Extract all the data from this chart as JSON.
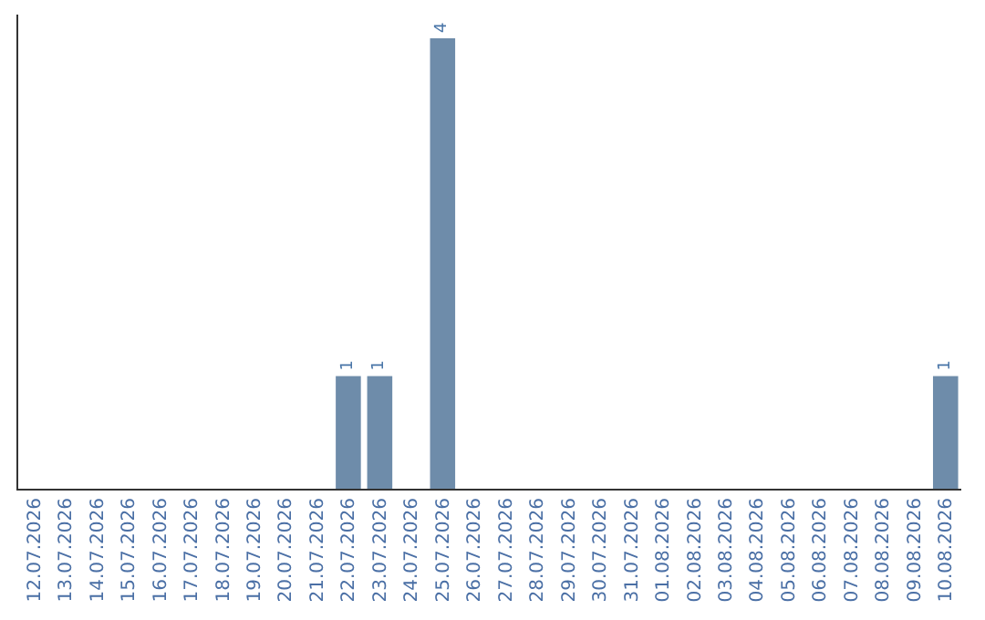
{
  "chart_data": {
    "type": "bar",
    "categories": [
      "12.07.2026",
      "13.07.2026",
      "14.07.2026",
      "15.07.2026",
      "16.07.2026",
      "17.07.2026",
      "18.07.2026",
      "19.07.2026",
      "20.07.2026",
      "21.07.2026",
      "22.07.2026",
      "23.07.2026",
      "24.07.2026",
      "25.07.2026",
      "26.07.2026",
      "27.07.2026",
      "28.07.2026",
      "29.07.2026",
      "30.07.2026",
      "31.07.2026",
      "01.08.2026",
      "02.08.2026",
      "03.08.2026",
      "04.08.2026",
      "05.08.2026",
      "06.08.2026",
      "07.08.2026",
      "08.08.2026",
      "09.08.2026",
      "10.08.2026"
    ],
    "values": [
      0,
      0,
      0,
      0,
      0,
      0,
      0,
      0,
      0,
      0,
      1,
      1,
      0,
      4,
      0,
      0,
      0,
      0,
      0,
      0,
      0,
      0,
      0,
      0,
      0,
      0,
      0,
      0,
      0,
      1
    ],
    "value_labels": [
      null,
      null,
      null,
      null,
      null,
      null,
      null,
      null,
      null,
      null,
      "1",
      "1",
      null,
      "4",
      null,
      null,
      null,
      null,
      null,
      null,
      null,
      null,
      null,
      null,
      null,
      null,
      null,
      null,
      null,
      "1"
    ],
    "color": "#6e8caa",
    "tick_labels": "x",
    "legend": false
  }
}
